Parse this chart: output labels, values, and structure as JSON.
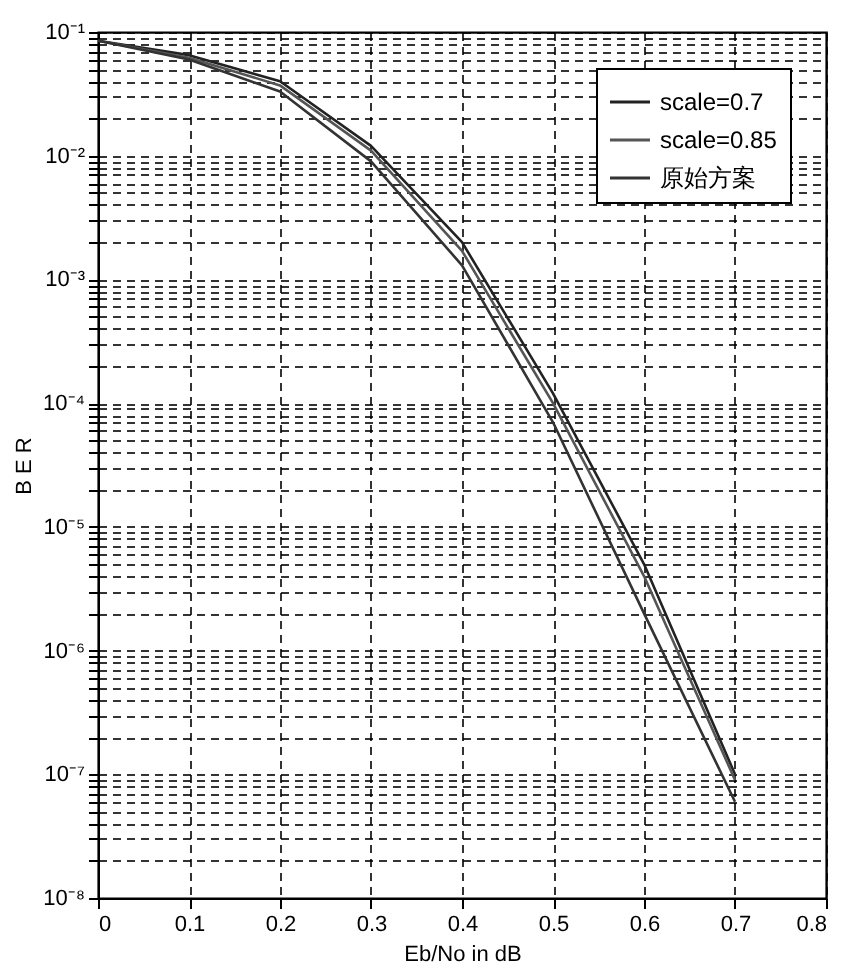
{
  "chart_data": {
    "type": "line",
    "xlabel": "Eb/No in dB",
    "ylabel": "B E R",
    "x": [
      0,
      0.1,
      0.2,
      0.3,
      0.4,
      0.5,
      0.6,
      0.7
    ],
    "series": [
      {
        "name": "scale=0.7",
        "color": "#222222",
        "values": [
          0.085,
          0.065,
          0.04,
          0.012,
          0.002,
          0.00012,
          5e-06,
          1e-07
        ]
      },
      {
        "name": "scale=0.85",
        "color": "#555555",
        "values": [
          0.085,
          0.062,
          0.037,
          0.011,
          0.0017,
          0.0001,
          4e-06,
          9e-08
        ]
      },
      {
        "name": "原始方案",
        "color": "#333333",
        "values": [
          0.085,
          0.06,
          0.033,
          0.009,
          0.0013,
          7e-05,
          2e-06,
          6e-08
        ]
      }
    ],
    "log": "y",
    "xlim": [
      0,
      0.8
    ],
    "xticks": [
      0,
      0.1,
      0.2,
      0.3,
      0.4,
      0.5,
      0.6,
      0.7,
      0.8
    ],
    "ylim": [
      1e-08,
      0.1
    ],
    "yticks": [
      {
        "value": 1e-08,
        "label": "10⁻⁸"
      },
      {
        "value": 2e-08,
        "label": null
      },
      {
        "value": 3e-08,
        "label": null
      },
      {
        "value": 4e-08,
        "label": null
      },
      {
        "value": 5e-08,
        "label": null
      },
      {
        "value": 6e-08,
        "label": null
      },
      {
        "value": 7e-08,
        "label": null
      },
      {
        "value": 8e-08,
        "label": null
      },
      {
        "value": 9e-08,
        "label": null
      },
      {
        "value": 1e-07,
        "label": "10⁻⁷"
      },
      {
        "value": 2e-07,
        "label": null
      },
      {
        "value": 3e-07,
        "label": null
      },
      {
        "value": 4e-07,
        "label": null
      },
      {
        "value": 5e-07,
        "label": null
      },
      {
        "value": 6e-07,
        "label": null
      },
      {
        "value": 7e-07,
        "label": null
      },
      {
        "value": 8e-07,
        "label": null
      },
      {
        "value": 9e-07,
        "label": null
      },
      {
        "value": 1e-06,
        "label": "10⁻⁶"
      },
      {
        "value": 2e-06,
        "label": null
      },
      {
        "value": 3e-06,
        "label": null
      },
      {
        "value": 4e-06,
        "label": null
      },
      {
        "value": 5e-06,
        "label": null
      },
      {
        "value": 6e-06,
        "label": null
      },
      {
        "value": 7e-06,
        "label": null
      },
      {
        "value": 8e-06,
        "label": null
      },
      {
        "value": 9e-06,
        "label": null
      },
      {
        "value": 1e-05,
        "label": "10⁻⁵"
      },
      {
        "value": 2e-05,
        "label": null
      },
      {
        "value": 3e-05,
        "label": null
      },
      {
        "value": 4e-05,
        "label": null
      },
      {
        "value": 5e-05,
        "label": null
      },
      {
        "value": 6e-05,
        "label": null
      },
      {
        "value": 7e-05,
        "label": null
      },
      {
        "value": 8e-05,
        "label": null
      },
      {
        "value": 9e-05,
        "label": null
      },
      {
        "value": 0.0001,
        "label": "10⁻⁴"
      },
      {
        "value": 0.0002,
        "label": null
      },
      {
        "value": 0.0003,
        "label": null
      },
      {
        "value": 0.0004,
        "label": null
      },
      {
        "value": 0.0005,
        "label": null
      },
      {
        "value": 0.0006,
        "label": null
      },
      {
        "value": 0.0007,
        "label": null
      },
      {
        "value": 0.0008,
        "label": null
      },
      {
        "value": 0.0009,
        "label": null
      },
      {
        "value": 0.001,
        "label": "10⁻³"
      },
      {
        "value": 0.002,
        "label": null
      },
      {
        "value": 0.003,
        "label": null
      },
      {
        "value": 0.004,
        "label": null
      },
      {
        "value": 0.005,
        "label": null
      },
      {
        "value": 0.006,
        "label": null
      },
      {
        "value": 0.007,
        "label": null
      },
      {
        "value": 0.008,
        "label": null
      },
      {
        "value": 0.009,
        "label": null
      },
      {
        "value": 0.01,
        "label": "10⁻²"
      },
      {
        "value": 0.02,
        "label": null
      },
      {
        "value": 0.03,
        "label": null
      },
      {
        "value": 0.04,
        "label": null
      },
      {
        "value": 0.05,
        "label": null
      },
      {
        "value": 0.06,
        "label": null
      },
      {
        "value": 0.07,
        "label": null
      },
      {
        "value": 0.08,
        "label": null
      },
      {
        "value": 0.09,
        "label": null
      },
      {
        "value": 0.1,
        "label": "10⁻¹"
      }
    ],
    "grid": true,
    "legend": "top right",
    "marker": "none",
    "line_style": "solid"
  }
}
